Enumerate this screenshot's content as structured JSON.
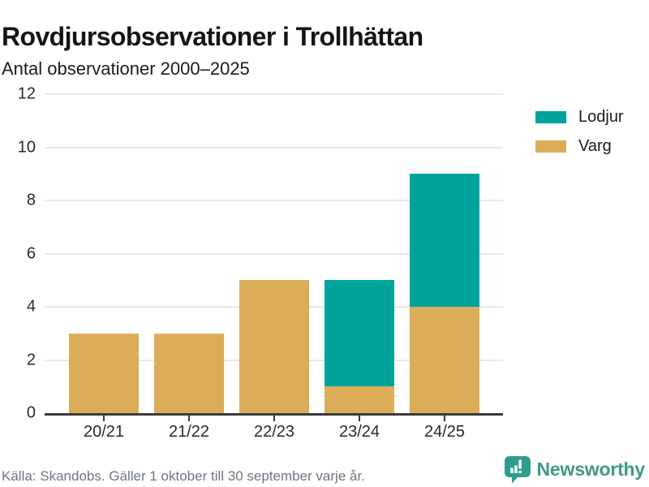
{
  "title": "Rovdjursobservationer i Trollhättan",
  "subtitle": "Antal observationer 2000–2025",
  "footer": {
    "source": "Källa: Skandobs. Gäller 1 oktober till 30 september varje år.",
    "brand": {
      "name": "Newsworthy",
      "icon": "bar-chart-speech-bubble-icon",
      "wordmark_color": "#3F978A",
      "icon_color": "#2E9C8E"
    }
  },
  "colors": {
    "lodjur": "#00A39B",
    "varg": "#DBAD58",
    "grid": "#E9E9E9",
    "axis": "#3A3A3A",
    "title_text": "#151515",
    "tick_text": "#2A2A2A",
    "muted_text": "#6D7683"
  },
  "chart_data": {
    "type": "bar",
    "stacked": true,
    "title": "Rovdjursobservationer i Trollhättan",
    "subtitle": "Antal observationer 2000–2025",
    "categories": [
      "20/21",
      "21/22",
      "22/23",
      "23/24",
      "24/25"
    ],
    "series": [
      {
        "name": "Varg",
        "color": "#DBAD58",
        "values": [
          3,
          3,
          5,
          1,
          4
        ]
      },
      {
        "name": "Lodjur",
        "color": "#00A39B",
        "values": [
          0,
          0,
          0,
          4,
          5
        ]
      }
    ],
    "totals": [
      3,
      3,
      5,
      5,
      9
    ],
    "legend": [
      {
        "label": "Lodjur",
        "color": "#00A39B"
      },
      {
        "label": "Varg",
        "color": "#DBAD58"
      }
    ],
    "legend_position": "top-right",
    "y_ticks": [
      0,
      2,
      4,
      6,
      8,
      10,
      12
    ],
    "ylim": [
      0,
      12
    ],
    "grid": true,
    "xlabel": "",
    "ylabel": ""
  }
}
